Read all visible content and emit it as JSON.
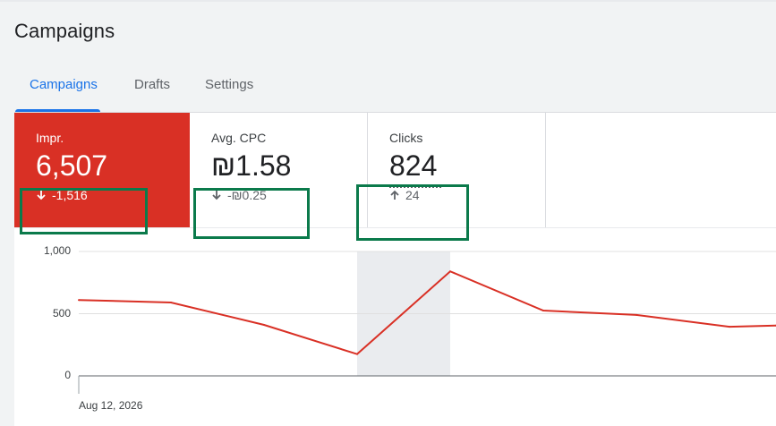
{
  "page": {
    "title": "Campaigns"
  },
  "tabs": [
    {
      "label": "Campaigns",
      "active": true
    },
    {
      "label": "Drafts",
      "active": false
    },
    {
      "label": "Settings",
      "active": false
    }
  ],
  "metrics": [
    {
      "label": "Impr.",
      "value": "6,507",
      "delta": "-1,516",
      "direction": "down",
      "selected": true,
      "color": "#d93025"
    },
    {
      "label": "Avg. CPC",
      "value": "₪1.58",
      "delta": "-₪0.25",
      "direction": "down",
      "selected": false
    },
    {
      "label": "Clicks",
      "value": "824",
      "delta": "24",
      "direction": "up",
      "selected": false
    }
  ],
  "colors": {
    "accent": "#1a73e8",
    "selected_metric": "#d93025",
    "line": "#d93025",
    "highlight_box": "#0b7a4b"
  },
  "chart_data": {
    "type": "line",
    "y_ticks": [
      "1,000",
      "500",
      "0"
    ],
    "ylim": [
      0,
      1000
    ],
    "x_tick_labels": [
      "Aug 12, 2026"
    ],
    "highlighted_point_index": 3,
    "series": [
      {
        "values": [
          610,
          590,
          410,
          175,
          840,
          525,
          490,
          395,
          405
        ]
      }
    ],
    "grid": true
  }
}
